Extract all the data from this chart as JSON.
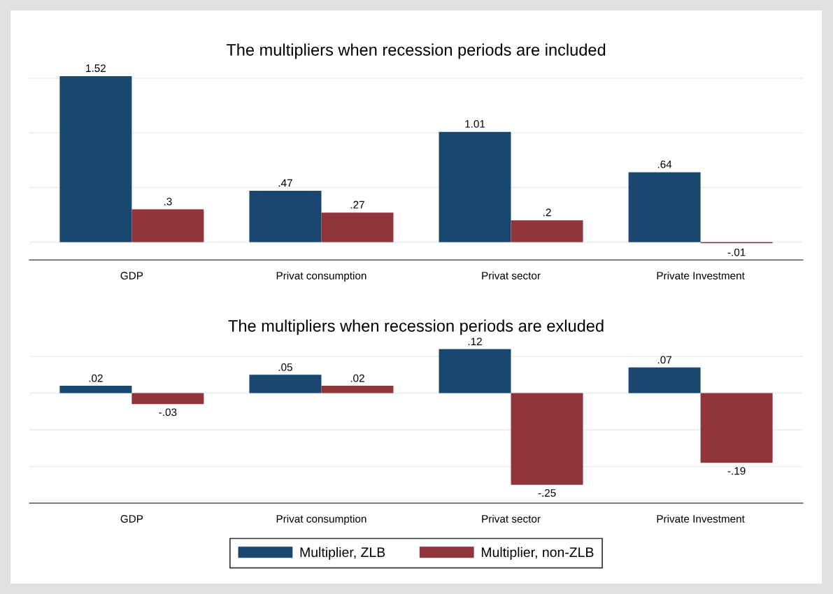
{
  "chart_data": [
    {
      "type": "bar",
      "title": "The multipliers when recession periods are included",
      "categories": [
        "GDP",
        "Privat consumption",
        "Privat sector",
        "Private Investment"
      ],
      "series": [
        {
          "color": "#1a476f",
          "values": [
            1.52,
            0.47,
            1.01,
            0.64
          ],
          "value_labels": [
            "1.52",
            ".47",
            "1.01",
            ".64"
          ]
        },
        {
          "color": "#90353b",
          "values": [
            0.3,
            0.27,
            0.2,
            -0.01
          ],
          "value_labels": [
            ".3",
            ".27",
            ".2",
            "-.01"
          ]
        }
      ],
      "yticks": [
        {
          "value": 0,
          "label": null
        },
        {
          "value": 0.5,
          "label": null
        },
        {
          "value": 1,
          "label": null
        },
        {
          "value": 1.5,
          "label": null
        }
      ],
      "grid": "y",
      "tick_labels": "x",
      "legend": false
    },
    {
      "type": "bar",
      "title": "The multipliers when recession periods are exluded",
      "categories": [
        "GDP",
        "Privat consumption",
        "Privat sector",
        "Private Investment"
      ],
      "series": [
        {
          "name": "Multiplier, ZLB",
          "color": "#1a476f",
          "values": [
            0.02,
            0.05,
            0.12,
            0.07
          ],
          "value_labels": [
            ".02",
            ".05",
            ".12",
            ".07"
          ]
        },
        {
          "name": "Multiplier, non-ZLB",
          "color": "#90353b",
          "values": [
            -0.03,
            0.02,
            -0.25,
            -0.19
          ],
          "value_labels": [
            "-.03",
            ".02",
            "-.25",
            "-.19"
          ]
        }
      ],
      "yticks": [
        {
          "value": -0.3,
          "label": null
        },
        {
          "value": -0.2,
          "label": null
        },
        {
          "value": -0.1,
          "label": null
        },
        {
          "value": 0,
          "label": null
        },
        {
          "value": 0.1,
          "label": null
        }
      ],
      "grid": "y",
      "tick_labels": "x",
      "legend": "bottom"
    }
  ]
}
